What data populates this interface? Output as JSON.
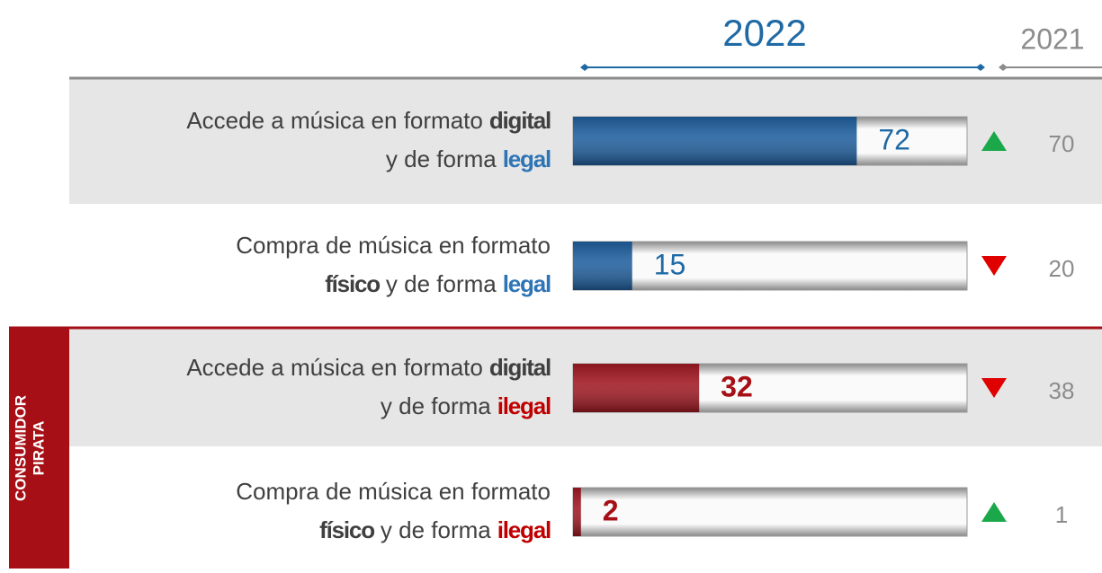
{
  "chart_data": {
    "type": "bar",
    "xlim": [
      0,
      100
    ],
    "rows": [
      {
        "lines": [
          [
            {
              "text": "Accede a música en formato"
            },
            {
              "text": "digital",
              "bold": true
            }
          ],
          [
            {
              "text": "y de forma"
            },
            {
              "text": "legal",
              "bold": true,
              "color": "#2e75b6"
            }
          ]
        ]
      },
      {
        "lines": [
          [
            {
              "text": "Compra de música en formato"
            }
          ],
          [
            {
              "text": "físico",
              "bold": true
            },
            {
              "text": "y de forma"
            },
            {
              "text": "legal",
              "bold": true,
              "color": "#2e75b6"
            }
          ]
        ]
      },
      {
        "lines": [
          [
            {
              "text": "Accede a música en formato"
            },
            {
              "text": "digital",
              "bold": true
            }
          ],
          [
            {
              "text": "y de forma"
            },
            {
              "text": "ilegal",
              "bold": true,
              "color": "#c00000"
            }
          ]
        ]
      },
      {
        "lines": [
          [
            {
              "text": "Compra de música en formato"
            }
          ],
          [
            {
              "text": "físico",
              "bold": true
            },
            {
              "text": "y de forma"
            },
            {
              "text": "ilegal",
              "bold": true,
              "color": "#c00000"
            }
          ]
        ]
      }
    ],
    "series": [
      {
        "name": "2022",
        "color": "#1f6aa5",
        "values": [
          72,
          15,
          32,
          2
        ],
        "colors": [
          "#1f5f9e",
          "#1f5f9e",
          "#a01822",
          "#a01822"
        ],
        "label_colors": [
          "#1f6aa5",
          "#1f6aa5",
          "#a50f15",
          "#a50f15"
        ],
        "label_bold": [
          false,
          false,
          true,
          true
        ]
      },
      {
        "name": "2021",
        "color": "#8c8c8c",
        "values": [
          70,
          20,
          38,
          1
        ]
      }
    ],
    "group_label": {
      "lines": [
        "CONSUMIDOR",
        "PIRATA"
      ],
      "rows": [
        2,
        3
      ],
      "color": "#a50f15"
    },
    "trend_colors": {
      "up": "#1aa84a",
      "down": "#e00000"
    }
  }
}
